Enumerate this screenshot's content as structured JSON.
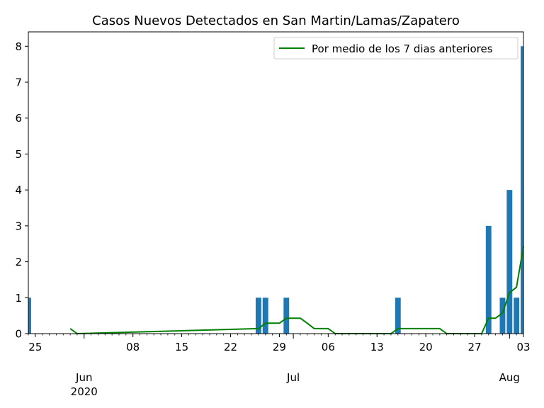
{
  "chart_data": {
    "type": "bar",
    "title": "Casos Nuevos Detectados en San Martin/Lamas/Zapatero",
    "xlabel": "",
    "ylabel": "",
    "x_range": [
      "2020-05-24",
      "2020-08-03"
    ],
    "ylim": [
      0,
      8.4
    ],
    "y_ticks": [
      0,
      1,
      2,
      3,
      4,
      5,
      6,
      7,
      8
    ],
    "x_major_ticks": [
      {
        "date": "2020-05-25",
        "label": "25"
      },
      {
        "date": "2020-06-08",
        "label": "08"
      },
      {
        "date": "2020-06-15",
        "label": "15"
      },
      {
        "date": "2020-06-22",
        "label": "22"
      },
      {
        "date": "2020-06-29",
        "label": "29"
      },
      {
        "date": "2020-07-06",
        "label": "06"
      },
      {
        "date": "2020-07-13",
        "label": "13"
      },
      {
        "date": "2020-07-20",
        "label": "20"
      },
      {
        "date": "2020-07-27",
        "label": "27"
      },
      {
        "date": "2020-08-03",
        "label": "03"
      }
    ],
    "x_month_labels": [
      {
        "date": "2020-06-01",
        "label": "Jun",
        "year": "2020"
      },
      {
        "date": "2020-07-01",
        "label": "Jul",
        "year": ""
      },
      {
        "date": "2020-08-01",
        "label": "Aug",
        "year": ""
      }
    ],
    "grid": false,
    "legend_position": "top-right",
    "bars": {
      "color": "#1f77b4",
      "points": [
        {
          "date": "2020-05-24",
          "value": 1
        },
        {
          "date": "2020-06-26",
          "value": 1
        },
        {
          "date": "2020-06-27",
          "value": 1
        },
        {
          "date": "2020-06-30",
          "value": 1
        },
        {
          "date": "2020-07-16",
          "value": 1
        },
        {
          "date": "2020-07-29",
          "value": 3
        },
        {
          "date": "2020-07-31",
          "value": 1
        },
        {
          "date": "2020-08-01",
          "value": 4
        },
        {
          "date": "2020-08-02",
          "value": 1
        },
        {
          "date": "2020-08-03",
          "value": 8
        }
      ]
    },
    "series": [
      {
        "name": "Por medio de los 7 dias anteriores",
        "color": "#008000",
        "x": [
          "2020-05-30",
          "2020-05-31",
          "2020-06-26",
          "2020-06-27",
          "2020-06-28",
          "2020-06-29",
          "2020-06-30",
          "2020-07-01",
          "2020-07-02",
          "2020-07-03",
          "2020-07-04",
          "2020-07-05",
          "2020-07-06",
          "2020-07-07",
          "2020-07-15",
          "2020-07-16",
          "2020-07-17",
          "2020-07-20",
          "2020-07-22",
          "2020-07-23",
          "2020-07-28",
          "2020-07-29",
          "2020-07-30",
          "2020-07-31",
          "2020-08-01",
          "2020-08-02",
          "2020-08-03"
        ],
        "y": [
          0.14,
          0,
          0.14,
          0.29,
          0.29,
          0.29,
          0.43,
          0.43,
          0.43,
          0.29,
          0.14,
          0.14,
          0.14,
          0,
          0,
          0.14,
          0.14,
          0.14,
          0.14,
          0,
          0,
          0.43,
          0.43,
          0.57,
          1.14,
          1.29,
          2.43
        ]
      }
    ]
  }
}
